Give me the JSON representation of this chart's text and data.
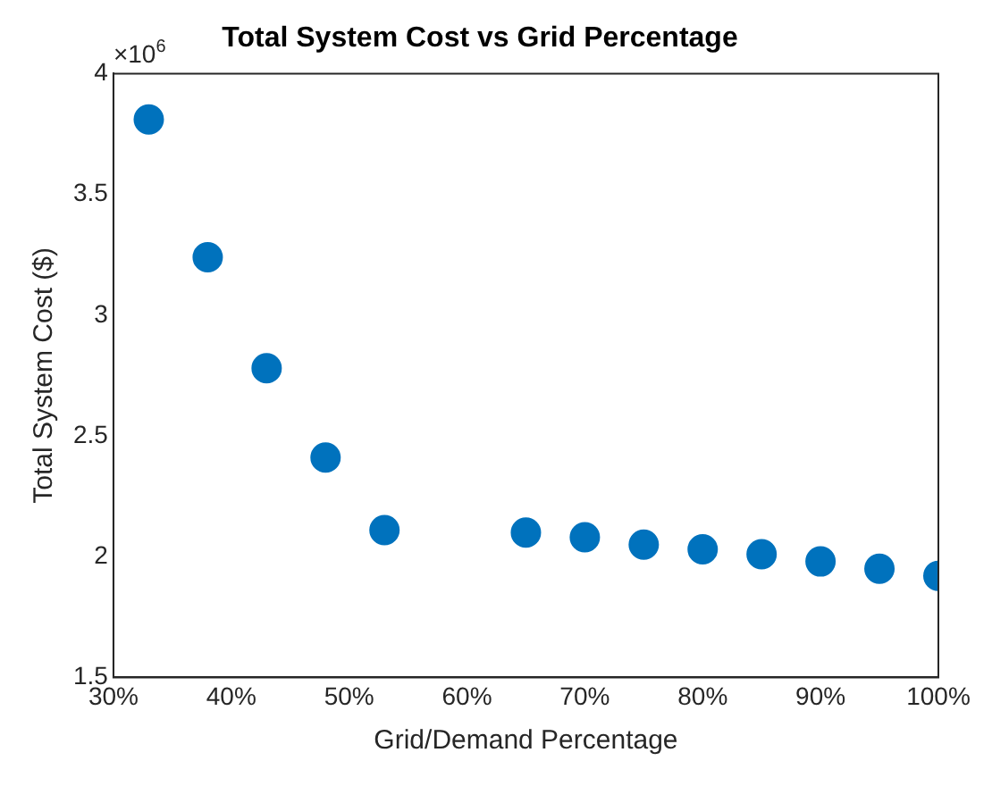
{
  "chart_data": {
    "type": "scatter",
    "title": "Total System Cost vs Grid Percentage",
    "xlabel": "Grid/Demand Percentage",
    "ylabel": "Total System Cost ($)",
    "annotations": [
      "×10$^{6}$"
    ],
    "x": [
      33,
      38,
      43,
      48,
      53,
      65,
      70,
      75,
      80,
      85,
      90,
      95,
      100
    ],
    "series": [
      {
        "color": "#0072bd",
        "values": [
          3.81,
          3.24,
          2.78,
          2.41,
          2.11,
          2.1,
          2.08,
          2.05,
          2.03,
          2.01,
          1.98,
          1.95,
          1.92
        ]
      }
    ],
    "xlim": [
      30,
      100
    ],
    "xticks": [
      {
        "value": 30,
        "label": "30%"
      },
      {
        "value": 40,
        "label": "40%"
      },
      {
        "value": 50,
        "label": "50%"
      },
      {
        "value": 60,
        "label": "60%"
      },
      {
        "value": 70,
        "label": "70%"
      },
      {
        "value": 80,
        "label": "80%"
      },
      {
        "value": 90,
        "label": "90%"
      },
      {
        "value": 100,
        "label": "100%"
      }
    ],
    "ylim": [
      1.5,
      4
    ],
    "yticks": [
      1.5,
      2,
      2.5,
      3,
      3.5,
      4
    ],
    "grid": false,
    "legend": false,
    "marker": "circle"
  }
}
